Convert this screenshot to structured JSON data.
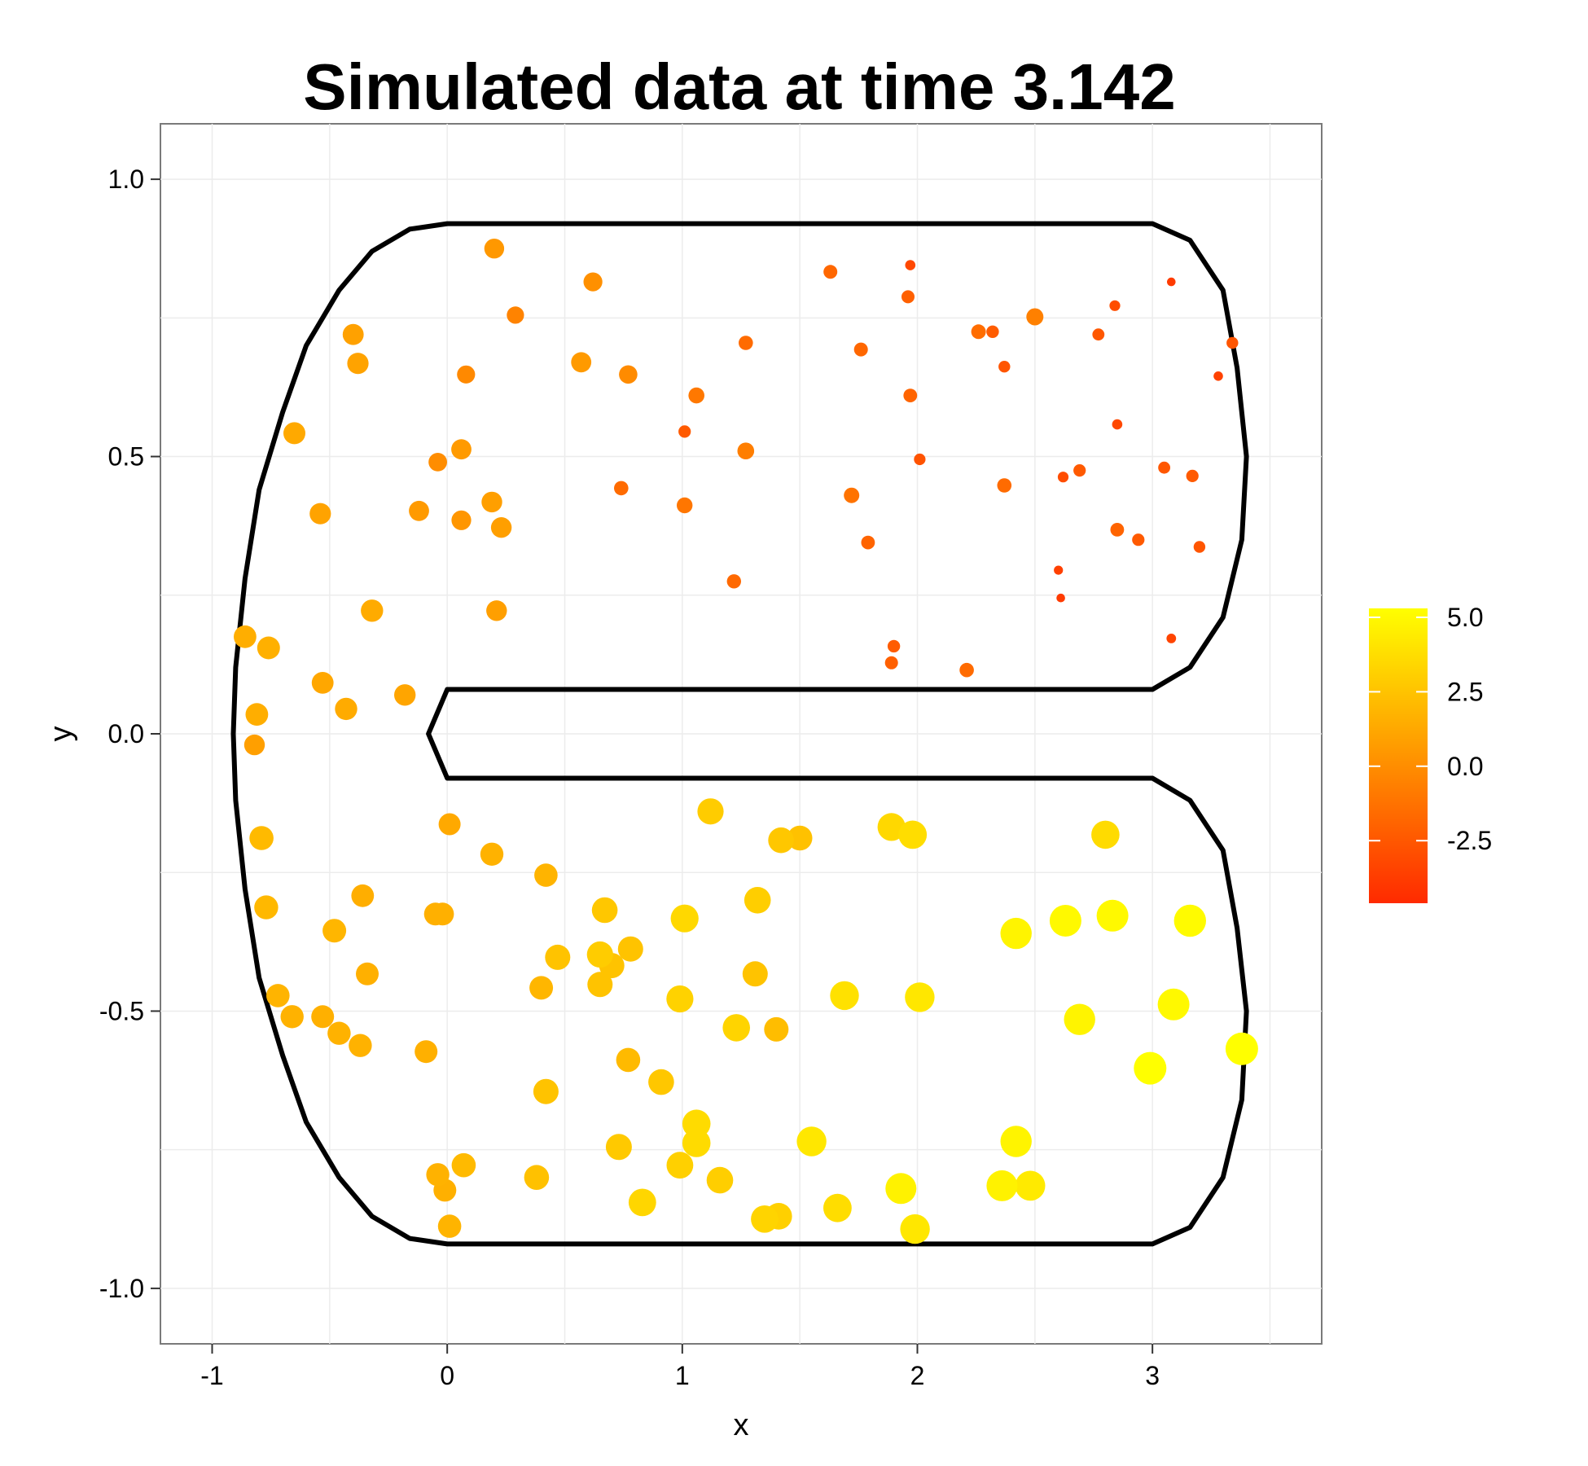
{
  "chart_data": {
    "type": "scatter",
    "title": "Simulated data at time 3.142",
    "xlabel": "x",
    "ylabel": "y",
    "xlim": [
      -1.22,
      3.72
    ],
    "ylim": [
      -1.1,
      1.1
    ],
    "x_ticks": [
      -1,
      0,
      1,
      2,
      3
    ],
    "y_ticks": [
      -1.0,
      -0.5,
      0.0,
      0.5,
      1.0
    ],
    "x_tick_labels": [
      "-1",
      "0",
      "1",
      "2",
      "3"
    ],
    "y_tick_labels": [
      "-1.0",
      "-0.5",
      "0.0",
      "0.5",
      "1.0"
    ],
    "grid": true,
    "background_color": "#ffffff",
    "grid_color": "#ececec",
    "colorbar": {
      "range": [
        -4.6,
        5.3
      ],
      "ticks": [
        -2.5,
        0.0,
        2.5,
        5.0
      ],
      "tick_labels": [
        "-2.5",
        "0.0",
        "2.5",
        "5.0"
      ],
      "color_low": "#ff2a00",
      "color_mid": "#ff9500",
      "color_high": "#ffff00",
      "position": "right"
    },
    "boundary": [
      [
        0,
        0.92
      ],
      [
        3,
        0.92
      ],
      [
        3.16,
        0.89
      ],
      [
        3.3,
        0.8
      ],
      [
        3.36,
        0.66
      ],
      [
        3.4,
        0.5
      ],
      [
        3.38,
        0.35
      ],
      [
        3.3,
        0.21
      ],
      [
        3.16,
        0.12
      ],
      [
        3,
        0.08
      ],
      [
        0,
        0.08
      ],
      [
        -0.08,
        0
      ],
      [
        0,
        -0.08
      ],
      [
        3,
        -0.08
      ],
      [
        3.16,
        -0.12
      ],
      [
        3.3,
        -0.21
      ],
      [
        3.36,
        -0.35
      ],
      [
        3.4,
        -0.5
      ],
      [
        3.38,
        -0.66
      ],
      [
        3.3,
        -0.8
      ],
      [
        3.16,
        -0.89
      ],
      [
        3,
        -0.92
      ],
      [
        0,
        -0.92
      ],
      [
        -0.16,
        -0.91
      ],
      [
        -0.32,
        -0.87
      ],
      [
        -0.46,
        -0.8
      ],
      [
        -0.6,
        -0.7
      ],
      [
        -0.7,
        -0.58
      ],
      [
        -0.8,
        -0.44
      ],
      [
        -0.86,
        -0.28
      ],
      [
        -0.9,
        -0.12
      ],
      [
        -0.91,
        0
      ],
      [
        -0.9,
        0.12
      ],
      [
        -0.86,
        0.28
      ],
      [
        -0.8,
        0.44
      ],
      [
        -0.7,
        0.58
      ],
      [
        -0.6,
        0.7
      ],
      [
        -0.46,
        0.8
      ],
      [
        -0.32,
        0.87
      ],
      [
        -0.16,
        0.91
      ],
      [
        0,
        0.92
      ]
    ],
    "points": [
      {
        "x": 0.2,
        "y": 0.875,
        "value": 0.5
      },
      {
        "x": 0.62,
        "y": 0.815,
        "value": 0.1
      },
      {
        "x": 0.29,
        "y": 0.755,
        "value": -0.5
      },
      {
        "x": -0.4,
        "y": 0.72,
        "value": 0.9
      },
      {
        "x": -0.38,
        "y": 0.668,
        "value": 1.0
      },
      {
        "x": 0.08,
        "y": 0.648,
        "value": -0.2
      },
      {
        "x": 0.57,
        "y": 0.67,
        "value": 0.6
      },
      {
        "x": 0.77,
        "y": 0.648,
        "value": -0.1
      },
      {
        "x": 1.63,
        "y": 0.833,
        "value": -1.8
      },
      {
        "x": 1.97,
        "y": 0.845,
        "value": -3.2
      },
      {
        "x": 3.08,
        "y": 0.815,
        "value": -3.8
      },
      {
        "x": 1.96,
        "y": 0.788,
        "value": -2.1
      },
      {
        "x": 2.84,
        "y": 0.772,
        "value": -3.0
      },
      {
        "x": 2.5,
        "y": 0.752,
        "value": -0.6
      },
      {
        "x": 2.26,
        "y": 0.725,
        "value": -1.5
      },
      {
        "x": 2.32,
        "y": 0.725,
        "value": -2.3
      },
      {
        "x": 2.77,
        "y": 0.72,
        "value": -2.5
      },
      {
        "x": 1.27,
        "y": 0.705,
        "value": -1.6
      },
      {
        "x": 1.76,
        "y": 0.693,
        "value": -1.8
      },
      {
        "x": 3.34,
        "y": 0.705,
        "value": -2.6
      },
      {
        "x": 2.37,
        "y": 0.662,
        "value": -2.6
      },
      {
        "x": 3.28,
        "y": 0.645,
        "value": -3.5
      },
      {
        "x": 1.06,
        "y": 0.61,
        "value": -1.0
      },
      {
        "x": 1.97,
        "y": 0.61,
        "value": -1.9
      },
      {
        "x": -0.65,
        "y": 0.542,
        "value": 1.3
      },
      {
        "x": 1.01,
        "y": 0.545,
        "value": -2.4
      },
      {
        "x": 2.85,
        "y": 0.558,
        "value": -3.2
      },
      {
        "x": 0.06,
        "y": 0.513,
        "value": 0.6
      },
      {
        "x": 1.27,
        "y": 0.51,
        "value": -0.7
      },
      {
        "x": -0.04,
        "y": 0.49,
        "value": 0.0
      },
      {
        "x": 2.01,
        "y": 0.495,
        "value": -2.7
      },
      {
        "x": 3.05,
        "y": 0.48,
        "value": -2.5
      },
      {
        "x": 2.69,
        "y": 0.475,
        "value": -2.4
      },
      {
        "x": 2.62,
        "y": 0.463,
        "value": -3.0
      },
      {
        "x": 3.17,
        "y": 0.465,
        "value": -2.4
      },
      {
        "x": 2.37,
        "y": 0.448,
        "value": -1.6
      },
      {
        "x": 0.74,
        "y": 0.443,
        "value": -1.6
      },
      {
        "x": 1.72,
        "y": 0.43,
        "value": -1.2
      },
      {
        "x": -0.54,
        "y": 0.397,
        "value": 1.0
      },
      {
        "x": -0.12,
        "y": 0.402,
        "value": 0.6
      },
      {
        "x": 0.19,
        "y": 0.418,
        "value": 0.8
      },
      {
        "x": 1.01,
        "y": 0.412,
        "value": -1.1
      },
      {
        "x": 0.06,
        "y": 0.385,
        "value": 0.4
      },
      {
        "x": 0.23,
        "y": 0.372,
        "value": 0.8
      },
      {
        "x": 2.85,
        "y": 0.368,
        "value": -1.9
      },
      {
        "x": 2.94,
        "y": 0.35,
        "value": -2.4
      },
      {
        "x": 1.79,
        "y": 0.345,
        "value": -1.9
      },
      {
        "x": 3.2,
        "y": 0.337,
        "value": -2.6
      },
      {
        "x": 2.6,
        "y": 0.295,
        "value": -3.6
      },
      {
        "x": 1.22,
        "y": 0.275,
        "value": -1.7
      },
      {
        "x": 2.61,
        "y": 0.245,
        "value": -3.8
      },
      {
        "x": -0.32,
        "y": 0.222,
        "value": 1.4
      },
      {
        "x": 0.21,
        "y": 0.222,
        "value": 0.8
      },
      {
        "x": -0.86,
        "y": 0.175,
        "value": 1.5
      },
      {
        "x": 3.08,
        "y": 0.172,
        "value": -3.4
      },
      {
        "x": 1.9,
        "y": 0.158,
        "value": -2.3
      },
      {
        "x": -0.76,
        "y": 0.155,
        "value": 1.6
      },
      {
        "x": 1.89,
        "y": 0.128,
        "value": -2.1
      },
      {
        "x": 2.21,
        "y": 0.115,
        "value": -1.6
      },
      {
        "x": -0.53,
        "y": 0.092,
        "value": 1.2
      },
      {
        "x": -0.18,
        "y": 0.07,
        "value": 1.1
      },
      {
        "x": -0.43,
        "y": 0.045,
        "value": 1.4
      },
      {
        "x": -0.81,
        "y": 0.035,
        "value": 1.5
      },
      {
        "x": -0.82,
        "y": -0.02,
        "value": 0.8
      },
      {
        "x": 1.12,
        "y": -0.14,
        "value": 2.9
      },
      {
        "x": 0.01,
        "y": -0.163,
        "value": 1.3
      },
      {
        "x": 1.89,
        "y": -0.168,
        "value": 3.5
      },
      {
        "x": 1.98,
        "y": -0.182,
        "value": 3.7
      },
      {
        "x": 2.8,
        "y": -0.182,
        "value": 3.6
      },
      {
        "x": -0.79,
        "y": -0.188,
        "value": 2.1
      },
      {
        "x": 1.42,
        "y": -0.192,
        "value": 2.7
      },
      {
        "x": 1.5,
        "y": -0.188,
        "value": 2.4
      },
      {
        "x": 0.19,
        "y": -0.217,
        "value": 1.7
      },
      {
        "x": 0.42,
        "y": -0.255,
        "value": 1.8
      },
      {
        "x": -0.36,
        "y": -0.292,
        "value": 1.5
      },
      {
        "x": 1.32,
        "y": -0.3,
        "value": 3.0
      },
      {
        "x": -0.77,
        "y": -0.313,
        "value": 2.0
      },
      {
        "x": 0.67,
        "y": -0.318,
        "value": 2.7
      },
      {
        "x": -0.05,
        "y": -0.325,
        "value": 1.6
      },
      {
        "x": -0.02,
        "y": -0.325,
        "value": 1.6
      },
      {
        "x": 2.63,
        "y": -0.337,
        "value": 5.0
      },
      {
        "x": 2.83,
        "y": -0.328,
        "value": 5.0
      },
      {
        "x": 3.16,
        "y": -0.337,
        "value": 5.1
      },
      {
        "x": 1.01,
        "y": -0.333,
        "value": 3.5
      },
      {
        "x": -0.48,
        "y": -0.355,
        "value": 1.9
      },
      {
        "x": 2.42,
        "y": -0.36,
        "value": 4.8
      },
      {
        "x": 0.78,
        "y": -0.388,
        "value": 2.5
      },
      {
        "x": 0.65,
        "y": -0.398,
        "value": 2.9
      },
      {
        "x": 0.47,
        "y": -0.403,
        "value": 2.5
      },
      {
        "x": 0.7,
        "y": -0.418,
        "value": 2.5
      },
      {
        "x": -0.34,
        "y": -0.433,
        "value": 1.6
      },
      {
        "x": 1.31,
        "y": -0.433,
        "value": 2.5
      },
      {
        "x": 0.65,
        "y": -0.452,
        "value": 2.5
      },
      {
        "x": 0.4,
        "y": -0.458,
        "value": 1.9
      },
      {
        "x": -0.72,
        "y": -0.472,
        "value": 1.8
      },
      {
        "x": 1.69,
        "y": -0.472,
        "value": 3.9
      },
      {
        "x": 2.01,
        "y": -0.475,
        "value": 4.2
      },
      {
        "x": 0.99,
        "y": -0.478,
        "value": 3.2
      },
      {
        "x": 3.09,
        "y": -0.488,
        "value": 5.0
      },
      {
        "x": -0.66,
        "y": -0.51,
        "value": 1.7
      },
      {
        "x": -0.53,
        "y": -0.51,
        "value": 1.6
      },
      {
        "x": 2.69,
        "y": -0.515,
        "value": 4.8
      },
      {
        "x": -0.46,
        "y": -0.54,
        "value": 1.7
      },
      {
        "x": 1.23,
        "y": -0.53,
        "value": 3.3
      },
      {
        "x": 1.4,
        "y": -0.533,
        "value": 2.2
      },
      {
        "x": 3.38,
        "y": -0.568,
        "value": 5.3
      },
      {
        "x": -0.37,
        "y": -0.562,
        "value": 1.7
      },
      {
        "x": -0.09,
        "y": -0.573,
        "value": 1.6
      },
      {
        "x": 0.77,
        "y": -0.588,
        "value": 2.1
      },
      {
        "x": 2.99,
        "y": -0.603,
        "value": 5.3
      },
      {
        "x": 0.91,
        "y": -0.628,
        "value": 2.7
      },
      {
        "x": 0.42,
        "y": -0.645,
        "value": 2.5
      },
      {
        "x": 1.06,
        "y": -0.703,
        "value": 3.6
      },
      {
        "x": 1.55,
        "y": -0.735,
        "value": 4.2
      },
      {
        "x": 2.42,
        "y": -0.735,
        "value": 4.8
      },
      {
        "x": 1.06,
        "y": -0.738,
        "value": 3.6
      },
      {
        "x": 0.73,
        "y": -0.745,
        "value": 2.8
      },
      {
        "x": 0.99,
        "y": -0.778,
        "value": 3.1
      },
      {
        "x": 0.07,
        "y": -0.778,
        "value": 2.1
      },
      {
        "x": -0.04,
        "y": -0.795,
        "value": 1.7
      },
      {
        "x": 0.38,
        "y": -0.8,
        "value": 2.4
      },
      {
        "x": 1.16,
        "y": -0.805,
        "value": 3.0
      },
      {
        "x": 2.36,
        "y": -0.815,
        "value": 4.7
      },
      {
        "x": 2.48,
        "y": -0.815,
        "value": 4.3
      },
      {
        "x": 1.93,
        "y": -0.82,
        "value": 4.7
      },
      {
        "x": -0.01,
        "y": -0.823,
        "value": 1.6
      },
      {
        "x": 0.83,
        "y": -0.845,
        "value": 3.4
      },
      {
        "x": 1.66,
        "y": -0.855,
        "value": 3.7
      },
      {
        "x": 1.35,
        "y": -0.875,
        "value": 3.3
      },
      {
        "x": 1.41,
        "y": -0.87,
        "value": 3.1
      },
      {
        "x": 0.01,
        "y": -0.888,
        "value": 1.8
      },
      {
        "x": 1.99,
        "y": -0.893,
        "value": 4.2
      }
    ]
  }
}
